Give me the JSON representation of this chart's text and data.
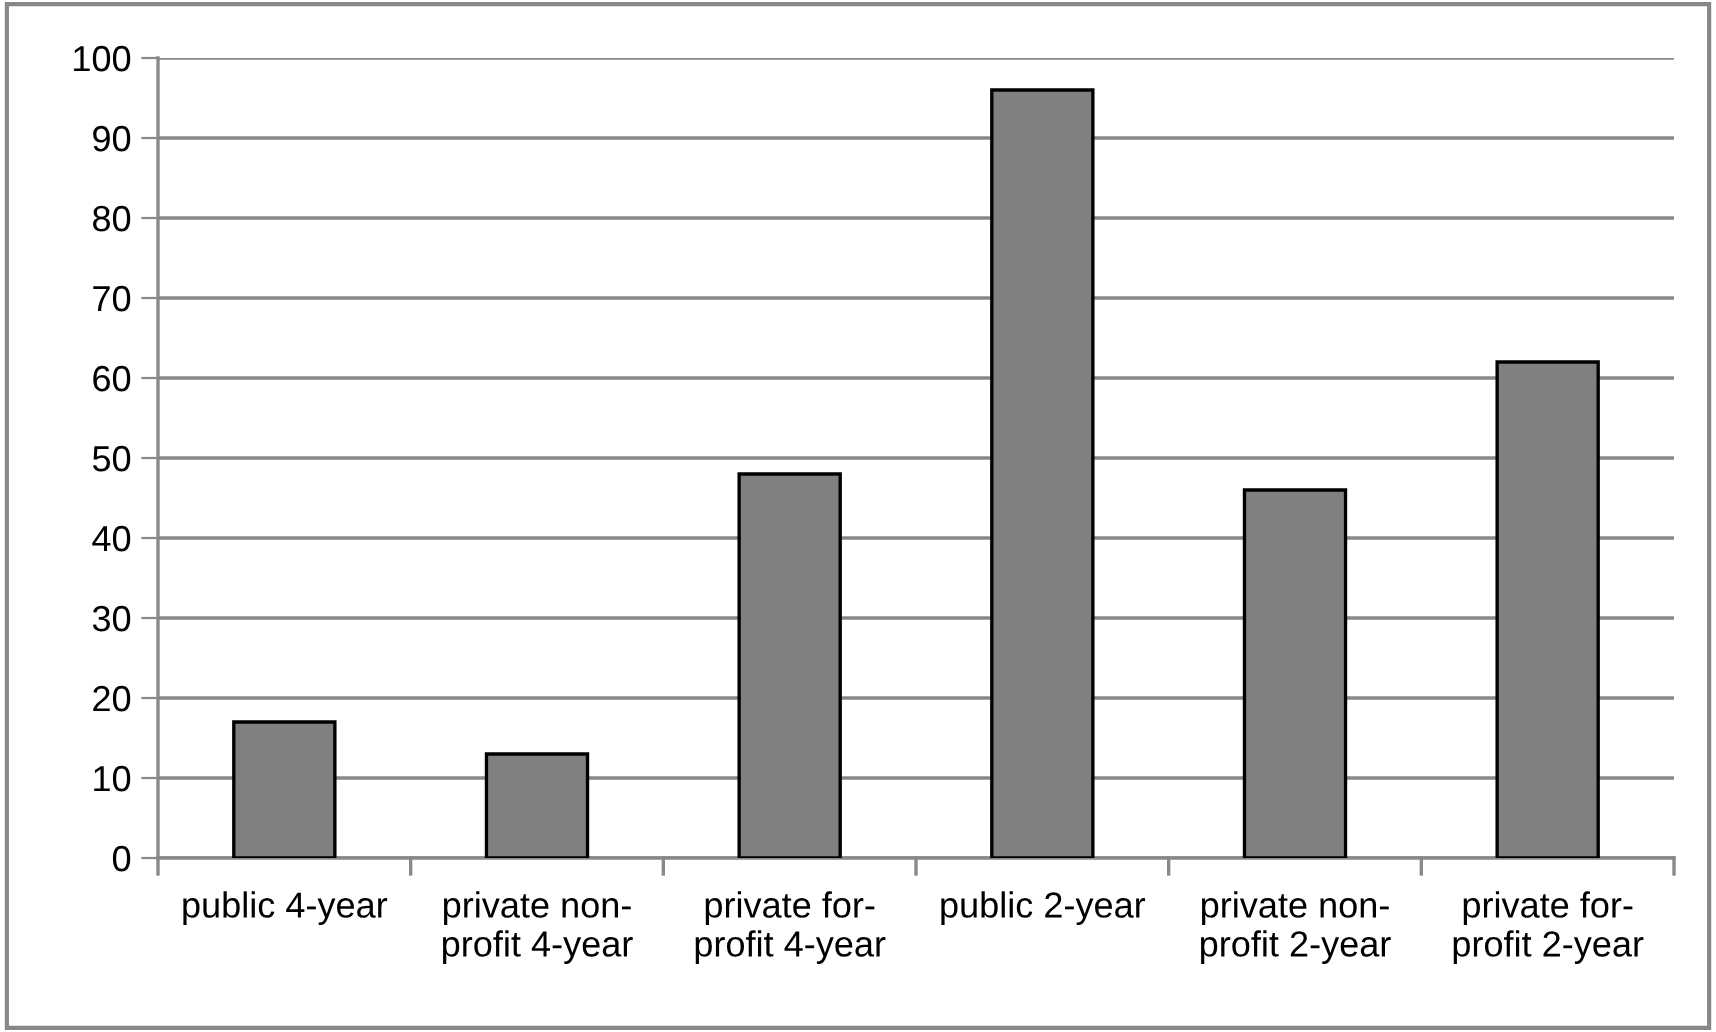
{
  "chart_data": {
    "type": "bar",
    "categories": [
      "public 4-year",
      "private non-\nprofit 4-year",
      "private for-\nprofit 4-year",
      "public 2-year",
      "private non-\nprofit 2-year",
      "private for-\nprofit 2-year"
    ],
    "values": [
      17,
      13,
      48,
      96,
      46,
      62
    ],
    "color": "#808080",
    "ylim": [
      0,
      100
    ],
    "yticks": [
      0,
      10,
      20,
      30,
      40,
      50,
      60,
      70,
      80,
      90,
      100
    ],
    "grid": "y",
    "legend": false
  }
}
